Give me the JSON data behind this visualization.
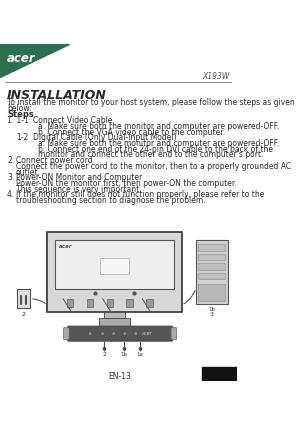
{
  "bg_color": "#ffffff",
  "logo_color": "#2d6e4e",
  "model_text": "X193W",
  "title": "INSTALLATION",
  "intro_line1": "To install the monitor to your host system, please follow the steps as given",
  "intro_line2": "below:",
  "steps_label": "Steps",
  "step_lines": [
    [
      "1. 1-1",
      "Connect Video Cable"
    ],
    [
      "",
      "a. Make sure both the monitor and computer are powered-OFF."
    ],
    [
      "",
      "b. Connect the VGA video cable to the computer."
    ],
    [
      "   1-2",
      "Digital Cable (Only Dual-Input Model)"
    ],
    [
      "",
      "a. Make sure both the monitor and computer are powered-OFF."
    ],
    [
      "",
      "b. Connect one end of the 24-pin DVI cable to the back of the"
    ],
    [
      "",
      "monitor and connect the other end to the computer's port."
    ],
    [
      "2.",
      "Connect power cord"
    ],
    [
      "",
      "Connect the power cord to the monitor, then to a properly grounded AC"
    ],
    [
      "",
      "outlet."
    ],
    [
      "3.",
      "Power-ON Monitor and Computer"
    ],
    [
      "",
      "Power-ON the monitor first, then power-ON the computer."
    ],
    [
      "",
      "This sequence is very important."
    ],
    [
      "4.",
      "If the monitor still does not function properly, please refer to the"
    ],
    [
      "",
      "troubleshooting section to diagnose the problem."
    ]
  ],
  "footer_text": "EN-13",
  "text_color": "#2a2a2a",
  "dark_color": "#111111"
}
